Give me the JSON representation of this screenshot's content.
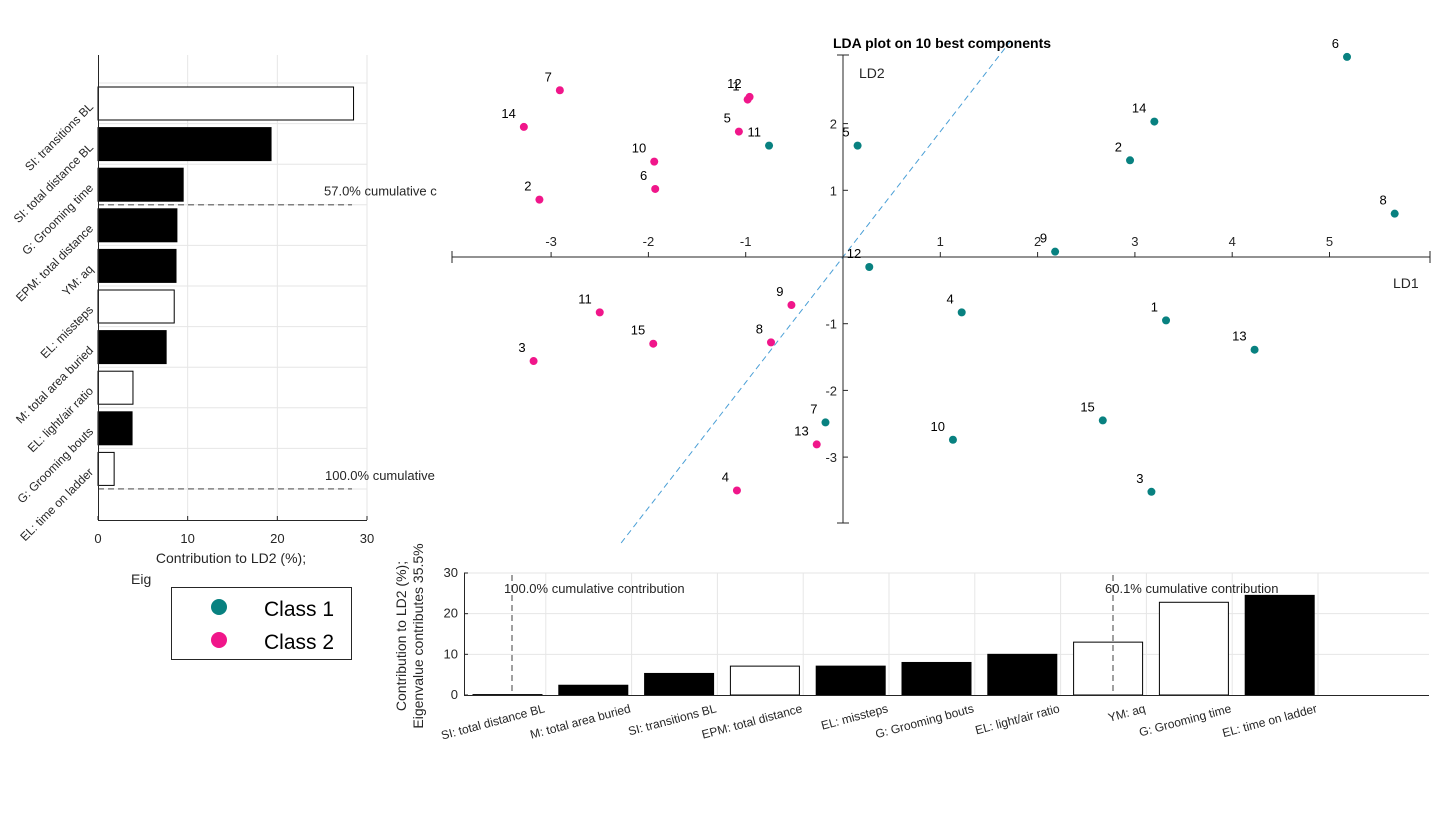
{
  "chart_data": [
    {
      "type": "scatter",
      "title": "LDA plot on 10 best components",
      "xlabel": "LD1",
      "ylabel": "LD2",
      "xlim": [
        -4,
        6
      ],
      "ylim": [
        -4,
        3.2
      ],
      "xticks": [
        -3,
        -2,
        -1,
        1,
        2,
        3,
        4,
        5
      ],
      "yticks": [
        -3,
        -2,
        -1,
        1,
        2
      ],
      "tick_labels_x": [
        "-3",
        "-2",
        "-1",
        "1",
        "2",
        "3",
        "4",
        "5"
      ],
      "tick_labels_y": [
        "-3",
        "-2",
        "-1",
        "1",
        "2"
      ],
      "axes_through_origin": true,
      "diagonal_line": {
        "style": "dashed",
        "color": "#4a9fd6",
        "slope": 1.88
      },
      "series": [
        {
          "name": "Class 1",
          "color": "#088180",
          "points": [
            {
              "label": "1",
              "x": 3.32,
              "y": -0.95
            },
            {
              "label": "2",
              "x": 2.95,
              "y": 1.45
            },
            {
              "label": "3",
              "x": 3.17,
              "y": -3.52
            },
            {
              "label": "4",
              "x": 1.22,
              "y": -0.83
            },
            {
              "label": "5",
              "x": 0.15,
              "y": 1.67
            },
            {
              "label": "6",
              "x": 5.18,
              "y": 3.0
            },
            {
              "label": "7",
              "x": -0.18,
              "y": -2.48
            },
            {
              "label": "8",
              "x": 5.67,
              "y": 0.65
            },
            {
              "label": "9",
              "x": 2.18,
              "y": 0.08
            },
            {
              "label": "10",
              "x": 1.13,
              "y": -2.74
            },
            {
              "label": "11",
              "x": -0.76,
              "y": 1.67
            },
            {
              "label": "12",
              "x": 0.27,
              "y": -0.15
            },
            {
              "label": "13",
              "x": 4.23,
              "y": -1.39
            },
            {
              "label": "14",
              "x": 3.2,
              "y": 2.03
            },
            {
              "label": "15",
              "x": 2.67,
              "y": -2.45
            }
          ]
        },
        {
          "name": "Class 2",
          "color": "#f0168a",
          "points": [
            {
              "label": "1",
              "x": -0.98,
              "y": 2.36
            },
            {
              "label": "2",
              "x": -3.12,
              "y": 0.86
            },
            {
              "label": "3",
              "x": -3.18,
              "y": -1.56
            },
            {
              "label": "4",
              "x": -1.09,
              "y": -3.5
            },
            {
              "label": "5",
              "x": -1.07,
              "y": 1.88
            },
            {
              "label": "6",
              "x": -1.93,
              "y": 1.02
            },
            {
              "label": "7",
              "x": -2.91,
              "y": 2.5
            },
            {
              "label": "8",
              "x": -0.74,
              "y": -1.28
            },
            {
              "label": "9",
              "x": -0.53,
              "y": -0.72
            },
            {
              "label": "10",
              "x": -1.94,
              "y": 1.43
            },
            {
              "label": "11",
              "x": -2.5,
              "y": -0.83
            },
            {
              "label": "12",
              "x": -0.96,
              "y": 2.4
            },
            {
              "label": "13",
              "x": -0.27,
              "y": -2.81
            },
            {
              "label": "14",
              "x": -3.28,
              "y": 1.95
            },
            {
              "label": "15",
              "x": -1.95,
              "y": -1.3
            }
          ]
        }
      ],
      "legend": {
        "position": "bottom-left",
        "entries": [
          "Class 1",
          "Class 2"
        ]
      }
    },
    {
      "type": "bar",
      "orientation": "horizontal",
      "xlabel": "Contribution to LD2 (%);",
      "xlabel_line2": "Eig",
      "xlim": [
        0,
        30
      ],
      "xticks": [
        "0",
        "10",
        "20",
        "30"
      ],
      "categories": [
        "SI: transitions BL",
        "SI: total distance BL",
        "G: Grooming time",
        "EPM: total distance",
        "YM: aq",
        "EL: missteps",
        "M: total area buried",
        "EL: light/air ratio",
        "G: Grooming bouts",
        "EL: time on ladder"
      ],
      "values": [
        28.5,
        19.3,
        9.5,
        8.8,
        8.7,
        8.5,
        7.6,
        3.9,
        3.8,
        1.8
      ],
      "fill": [
        "white",
        "black",
        "black",
        "black",
        "black",
        "white",
        "black",
        "white",
        "black",
        "white"
      ],
      "annotations": [
        "57.0% cumulative c",
        "100.0% cumulative"
      ]
    },
    {
      "type": "bar",
      "orientation": "vertical",
      "ylabel": "Contribution to LD2 (%);",
      "ylabel_line2": "Eigenvalue contributes 35.5%",
      "ylim": [
        0,
        30
      ],
      "yticks": [
        "0",
        "10",
        "20",
        "30"
      ],
      "categories": [
        "SI: total distance BL",
        "M: total area buried",
        "SI: transitions BL",
        "EPM: total distance",
        "EL: missteps",
        "G: Grooming bouts",
        "EL: light/air ratio",
        "YM: aq",
        "G: Grooming time",
        "EL: time on ladder"
      ],
      "values": [
        0.1,
        2.4,
        5.3,
        7.1,
        7.1,
        8.0,
        10.0,
        13.0,
        22.8,
        24.5
      ],
      "fill": [
        "black",
        "black",
        "black",
        "white",
        "black",
        "black",
        "black",
        "white",
        "white",
        "black"
      ],
      "annotations": [
        "100.0% cumulative contribution",
        "60.1% cumulative contribution"
      ]
    }
  ]
}
